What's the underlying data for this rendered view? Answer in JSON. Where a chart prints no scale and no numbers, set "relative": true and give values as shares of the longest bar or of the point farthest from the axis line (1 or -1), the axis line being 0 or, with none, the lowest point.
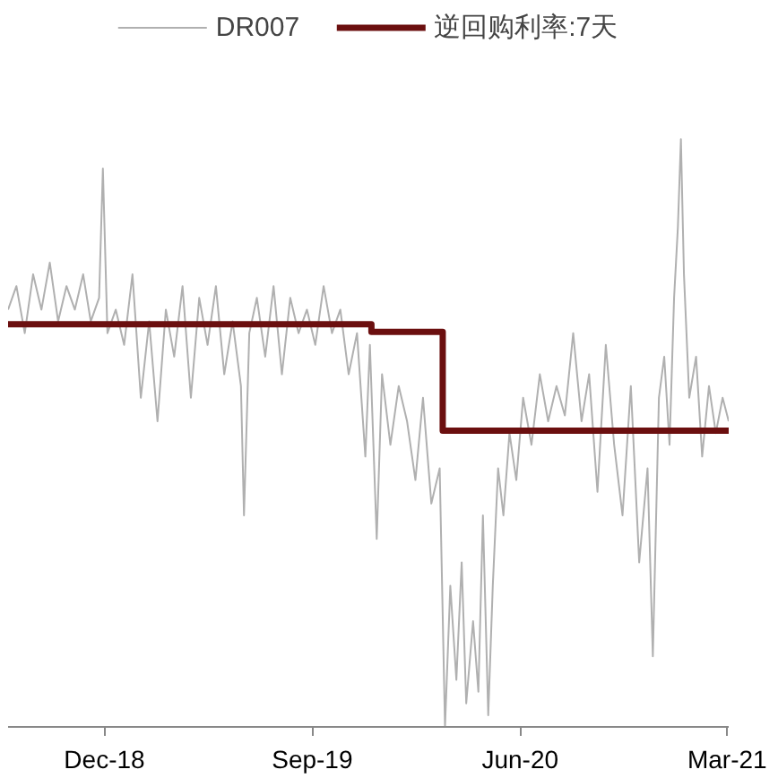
{
  "chart_data": {
    "type": "line",
    "relative": true,
    "grid": false,
    "legend": "top",
    "marker": "none",
    "xlim": [
      "2018-07-27",
      "2021-03-03"
    ],
    "xticks": [
      {
        "value": "2018-12-01",
        "label": "Dec-18"
      },
      {
        "value": "2019-09-01",
        "label": "Sep-19"
      },
      {
        "value": "2020-06-01",
        "label": "Jun-20"
      },
      {
        "value": "2021-03-01",
        "label": "Mar-21"
      }
    ],
    "series": [
      {
        "name": "DR007",
        "color": "#b0b0b0",
        "x": [
          "2018-07-27",
          "2018-08-07",
          "2018-08-18",
          "2018-08-29",
          "2018-09-09",
          "2018-09-20",
          "2018-10-01",
          "2018-10-12",
          "2018-10-23",
          "2018-11-03",
          "2018-11-13",
          "2018-11-24",
          "2018-11-29",
          "2018-12-05",
          "2018-12-16",
          "2018-12-27",
          "2019-01-07",
          "2019-01-18",
          "2019-01-29",
          "2019-02-09",
          "2019-02-20",
          "2019-03-03",
          "2019-03-14",
          "2019-03-25",
          "2019-04-05",
          "2019-04-16",
          "2019-04-27",
          "2019-05-08",
          "2019-05-19",
          "2019-05-30",
          "2019-06-03",
          "2019-06-10",
          "2019-06-20",
          "2019-07-01",
          "2019-07-12",
          "2019-07-23",
          "2019-08-03",
          "2019-08-14",
          "2019-08-25",
          "2019-09-05",
          "2019-09-16",
          "2019-09-27",
          "2019-10-08",
          "2019-10-19",
          "2019-10-30",
          "2019-11-10",
          "2019-11-16",
          "2019-11-25",
          "2019-12-02",
          "2019-12-13",
          "2019-12-24",
          "2020-01-04",
          "2020-01-15",
          "2020-01-25",
          "2020-02-05",
          "2020-02-16",
          "2020-02-23",
          "2020-03-01",
          "2020-03-09",
          "2020-03-16",
          "2020-03-22",
          "2020-03-31",
          "2020-04-07",
          "2020-04-13",
          "2020-04-20",
          "2020-04-26",
          "2020-05-03",
          "2020-05-10",
          "2020-05-18",
          "2020-05-27",
          "2020-06-05",
          "2020-06-16",
          "2020-06-27",
          "2020-07-08",
          "2020-07-19",
          "2020-07-30",
          "2020-08-10",
          "2020-08-21",
          "2020-08-31",
          "2020-09-11",
          "2020-09-22",
          "2020-10-03",
          "2020-10-14",
          "2020-10-25",
          "2020-11-05",
          "2020-11-16",
          "2020-11-23",
          "2020-12-01",
          "2020-12-08",
          "2020-12-15",
          "2020-12-21",
          "2020-12-26",
          "2020-12-30",
          "2021-01-03",
          "2021-01-10",
          "2021-01-19",
          "2021-01-27",
          "2021-02-05",
          "2021-02-14",
          "2021-02-23",
          "2021-03-03"
        ],
        "values": [
          0.71,
          0.75,
          0.67,
          0.77,
          0.71,
          0.79,
          0.69,
          0.75,
          0.71,
          0.77,
          0.69,
          0.73,
          0.95,
          0.67,
          0.71,
          0.65,
          0.77,
          0.56,
          0.69,
          0.52,
          0.71,
          0.63,
          0.75,
          0.56,
          0.73,
          0.65,
          0.75,
          0.6,
          0.69,
          0.58,
          0.36,
          0.67,
          0.73,
          0.63,
          0.75,
          0.6,
          0.73,
          0.67,
          0.71,
          0.65,
          0.75,
          0.67,
          0.71,
          0.6,
          0.67,
          0.46,
          0.65,
          0.32,
          0.6,
          0.48,
          0.58,
          0.52,
          0.42,
          0.56,
          0.38,
          0.44,
          0.0,
          0.24,
          0.08,
          0.28,
          0.04,
          0.18,
          0.06,
          0.36,
          0.02,
          0.24,
          0.44,
          0.36,
          0.5,
          0.42,
          0.56,
          0.48,
          0.6,
          0.52,
          0.58,
          0.53,
          0.67,
          0.52,
          0.6,
          0.4,
          0.65,
          0.48,
          0.36,
          0.58,
          0.28,
          0.44,
          0.12,
          0.56,
          0.63,
          0.48,
          0.73,
          0.85,
          1.0,
          0.77,
          0.56,
          0.63,
          0.46,
          0.58,
          0.5,
          0.56,
          0.52
        ]
      },
      {
        "name": "逆回购利率:7天",
        "color": "#6b0f0f",
        "type": "step",
        "x": [
          "2018-07-27",
          "2019-11-18",
          "2020-02-20",
          "2021-03-03"
        ],
        "values": [
          0.685,
          0.672,
          0.504,
          0.504
        ]
      }
    ]
  }
}
